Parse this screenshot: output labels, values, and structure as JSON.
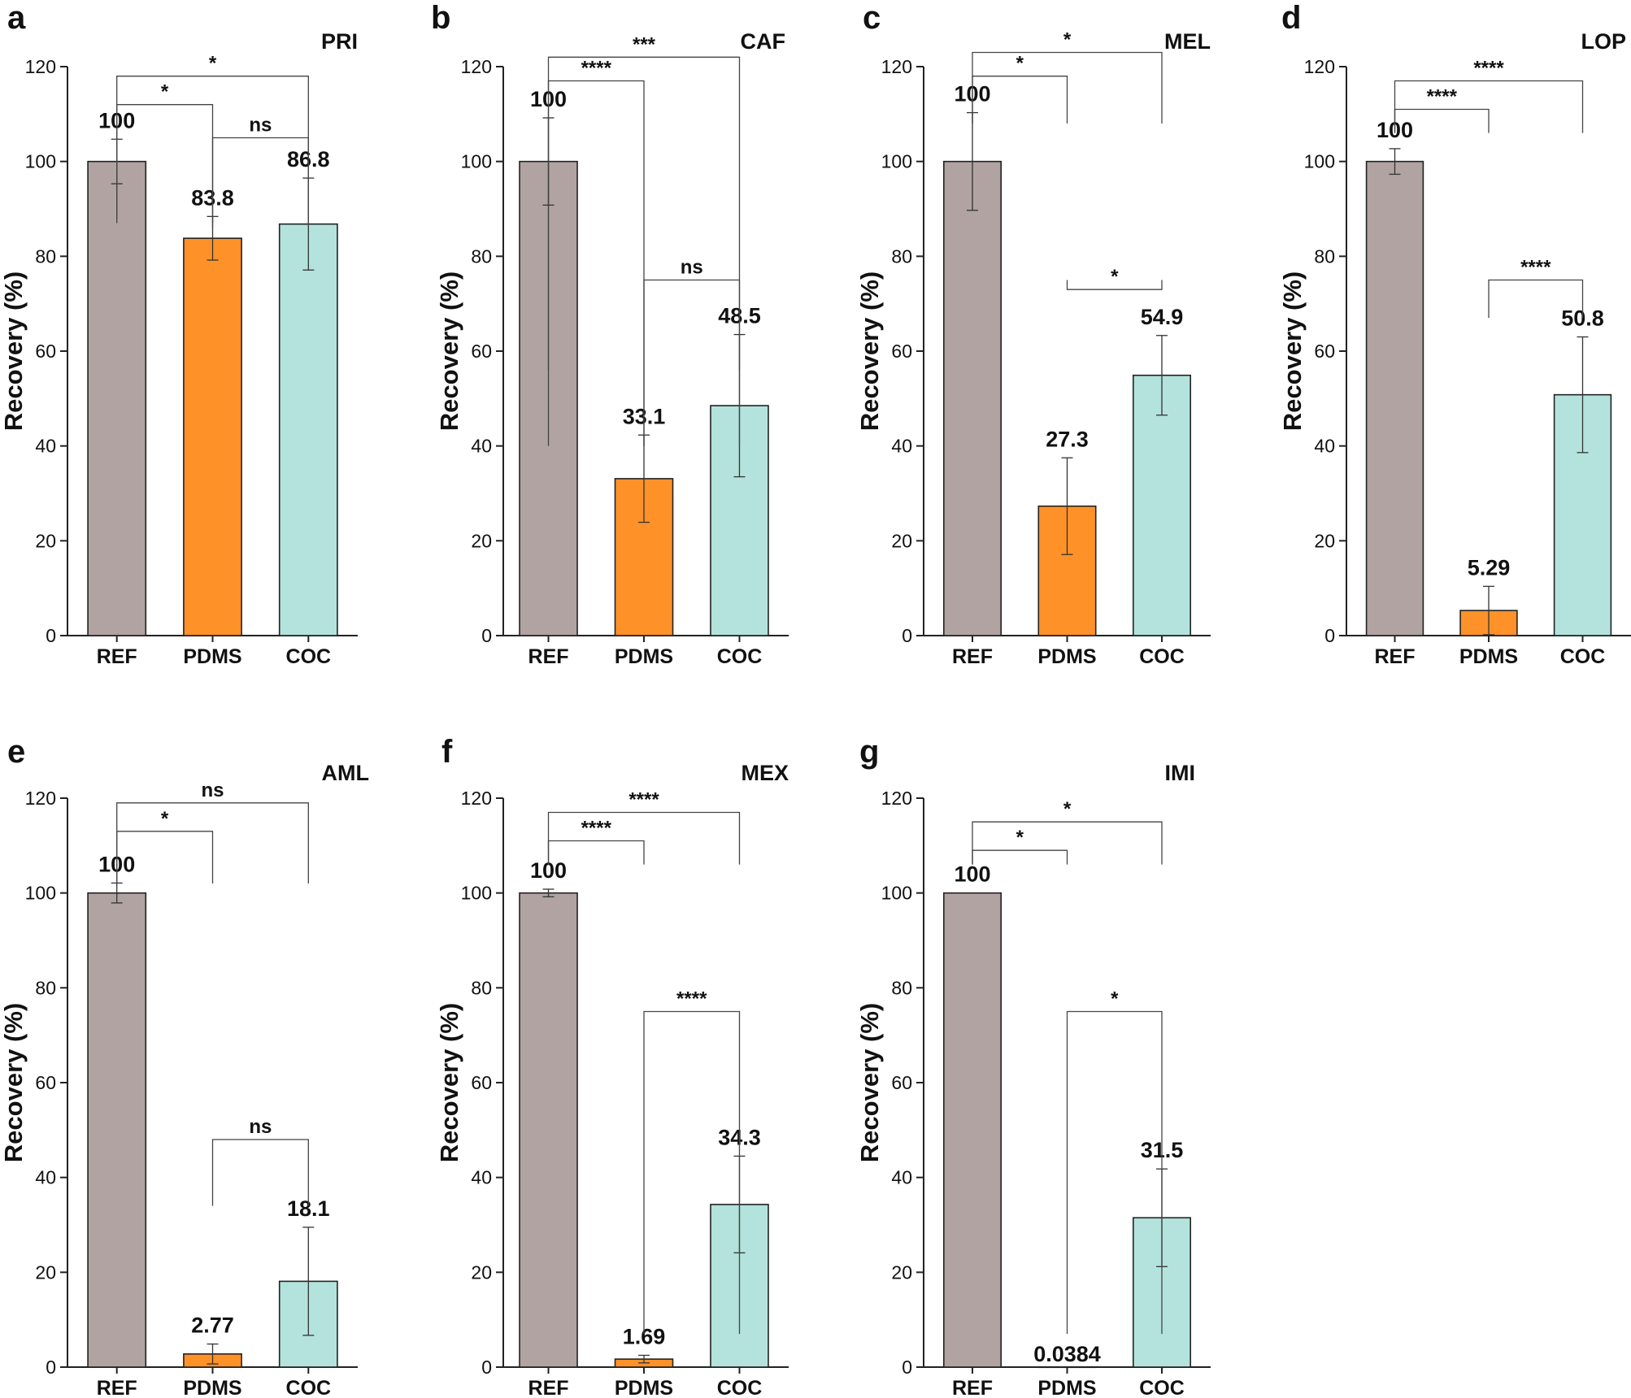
{
  "chart_data": [
    {
      "type": "bar",
      "panel": "a",
      "title": "PRI",
      "ylabel": "Recovery (%)",
      "ylim": [
        0,
        120
      ],
      "yticks": [
        0,
        20,
        40,
        60,
        80,
        100,
        120
      ],
      "categories": [
        "REF",
        "PDMS",
        "COC"
      ],
      "values": [
        100,
        83.8,
        86.8
      ],
      "value_labels": [
        "100",
        "83.8",
        "86.8"
      ],
      "errors": [
        4.7,
        4.6,
        9.7
      ],
      "colors": [
        "#b0a3a2",
        "#ff9129",
        "#b3e3dc"
      ],
      "significance": [
        {
          "from": 0,
          "to": 1,
          "label": "*",
          "level": 112,
          "drop_from": 87
        },
        {
          "from": 0,
          "to": 2,
          "label": "*",
          "level": 118,
          "drop_from": 88
        },
        {
          "from": 1,
          "to": 2,
          "label": "ns",
          "level": 105,
          "drop_from": 86
        }
      ]
    },
    {
      "type": "bar",
      "panel": "b",
      "title": "CAF",
      "ylabel": "Recovery (%)",
      "ylim": [
        0,
        120
      ],
      "yticks": [
        0,
        20,
        40,
        60,
        80,
        100,
        120
      ],
      "categories": [
        "REF",
        "PDMS",
        "COC"
      ],
      "values": [
        100,
        33.1,
        48.5
      ],
      "value_labels": [
        "100",
        "33.1",
        "48.5"
      ],
      "errors": [
        9.2,
        9.2,
        15
      ],
      "colors": [
        "#b0a3a2",
        "#ff9129",
        "#b3e3dc"
      ],
      "significance": [
        {
          "from": 0,
          "to": 1,
          "label": "****",
          "level": 117,
          "drop_from": 40
        },
        {
          "from": 0,
          "to": 2,
          "label": "***",
          "level": 122,
          "drop_from": 56
        },
        {
          "from": 1,
          "to": 2,
          "label": "ns",
          "level": 75,
          "drop_from": 40
        }
      ]
    },
    {
      "type": "bar",
      "panel": "c",
      "title": "MEL",
      "ylabel": "Recovery (%)",
      "ylim": [
        0,
        120
      ],
      "yticks": [
        0,
        20,
        40,
        60,
        80,
        100,
        120
      ],
      "categories": [
        "REF",
        "PDMS",
        "COC"
      ],
      "values": [
        100,
        27.3,
        54.9
      ],
      "value_labels": [
        "100",
        "27.3",
        "54.9"
      ],
      "errors": [
        10.3,
        10.2,
        8.4
      ],
      "colors": [
        "#b0a3a2",
        "#ff9129",
        "#b3e3dc"
      ],
      "significance": [
        {
          "from": 0,
          "to": 1,
          "label": "*",
          "level": 118,
          "drop_from": 108
        },
        {
          "from": 0,
          "to": 2,
          "label": "*",
          "level": 123,
          "drop_from": 108
        },
        {
          "from": 1,
          "to": 2,
          "label": "*",
          "level": 73,
          "drop_from": 75
        }
      ]
    },
    {
      "type": "bar",
      "panel": "d",
      "title": "LOP",
      "ylabel": "Recovery (%)",
      "ylim": [
        0,
        120
      ],
      "yticks": [
        0,
        20,
        40,
        60,
        80,
        100,
        120
      ],
      "categories": [
        "REF",
        "PDMS",
        "COC"
      ],
      "values": [
        100,
        5.29,
        50.8
      ],
      "value_labels": [
        "100",
        "5.29",
        "50.8"
      ],
      "errors": [
        2.7,
        5.1,
        12.2
      ],
      "colors": [
        "#b0a3a2",
        "#ff9129",
        "#b3e3dc"
      ],
      "significance": [
        {
          "from": 0,
          "to": 1,
          "label": "****",
          "level": 111,
          "drop_from": 106
        },
        {
          "from": 0,
          "to": 2,
          "label": "****",
          "level": 117,
          "drop_from": 106
        },
        {
          "from": 1,
          "to": 2,
          "label": "****",
          "level": 75,
          "drop_from": 67
        }
      ]
    },
    {
      "type": "bar",
      "panel": "e",
      "title": "AML",
      "ylabel": "Recovery (%)",
      "ylim": [
        0,
        120
      ],
      "yticks": [
        0,
        20,
        40,
        60,
        80,
        100,
        120
      ],
      "categories": [
        "REF",
        "PDMS",
        "COC"
      ],
      "values": [
        100,
        2.77,
        18.1
      ],
      "value_labels": [
        "100",
        "2.77",
        "18.1"
      ],
      "errors": [
        2.1,
        2.1,
        11.4
      ],
      "colors": [
        "#b0a3a2",
        "#ff9129",
        "#b3e3dc"
      ],
      "significance": [
        {
          "from": 0,
          "to": 1,
          "label": "*",
          "level": 113,
          "drop_from": 102
        },
        {
          "from": 0,
          "to": 2,
          "label": "ns",
          "level": 119,
          "drop_from": 102
        },
        {
          "from": 1,
          "to": 2,
          "label": "ns",
          "level": 48,
          "drop_from": 34
        }
      ]
    },
    {
      "type": "bar",
      "panel": "f",
      "title": "MEX",
      "ylabel": "Recovery (%)",
      "ylim": [
        0,
        120
      ],
      "yticks": [
        0,
        20,
        40,
        60,
        80,
        100,
        120
      ],
      "categories": [
        "REF",
        "PDMS",
        "COC"
      ],
      "values": [
        100,
        1.69,
        34.3
      ],
      "value_labels": [
        "100",
        "1.69",
        "34.3"
      ],
      "errors": [
        0.8,
        0.8,
        10.2
      ],
      "colors": [
        "#b0a3a2",
        "#ff9129",
        "#b3e3dc"
      ],
      "significance": [
        {
          "from": 0,
          "to": 1,
          "label": "****",
          "level": 111,
          "drop_from": 106
        },
        {
          "from": 0,
          "to": 2,
          "label": "****",
          "level": 117,
          "drop_from": 106
        },
        {
          "from": 1,
          "to": 2,
          "label": "****",
          "level": 75,
          "drop_from": 7
        }
      ]
    },
    {
      "type": "bar",
      "panel": "g",
      "title": "IMI",
      "ylabel": "Recovery (%)",
      "ylim": [
        0,
        120
      ],
      "yticks": [
        0,
        20,
        40,
        60,
        80,
        100,
        120
      ],
      "categories": [
        "REF",
        "PDMS",
        "COC"
      ],
      "values": [
        100,
        0.0384,
        31.5
      ],
      "value_labels": [
        "100",
        "0.0384",
        "31.5"
      ],
      "errors": [
        0,
        0,
        10.3
      ],
      "colors": [
        "#b0a3a2",
        "#ff9129",
        "#b3e3dc"
      ],
      "significance": [
        {
          "from": 0,
          "to": 1,
          "label": "*",
          "level": 109,
          "drop_from": 106
        },
        {
          "from": 0,
          "to": 2,
          "label": "*",
          "level": 115,
          "drop_from": 106
        },
        {
          "from": 1,
          "to": 2,
          "label": "*",
          "level": 75,
          "drop_from": 7
        }
      ]
    }
  ]
}
